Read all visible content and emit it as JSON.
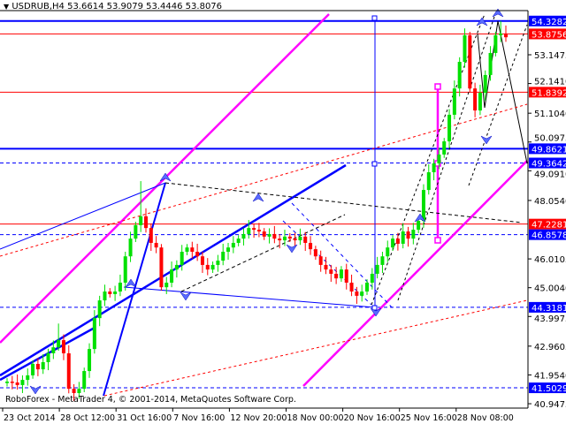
{
  "window": {
    "symbol_menu_icon": "triangle-down-icon",
    "title": "USDRUB,H4  53.6614 53.9079 53.4446 53.8076",
    "footer": "RoboForex - MetaTrader 4, © 2001-2014, MetaQuotes Software Corp."
  },
  "colors": {
    "bull": "#00e000",
    "bear": "#ff0000",
    "level_blue": "#0000ff",
    "level_red": "#ff0000",
    "pink": "#ff00ff",
    "axis": "#000000"
  },
  "chart_data": {
    "type": "candlestick",
    "symbol": "USDRUB",
    "timeframe": "H4",
    "ylim": [
      40.9475,
      54.33
    ],
    "y_ticks": [
      "53.1475",
      "52.1410",
      "51.1040",
      "50.0975",
      "49.0910",
      "48.0540",
      "46.0105",
      "45.0040",
      "43.9975",
      "42.9605",
      "41.9540",
      "40.9475"
    ],
    "x_ticks": [
      "23 Oct 2014",
      "28 Oct 12:00",
      "31 Oct 16:00",
      "7 Nov 16:00",
      "12 Nov 20:00",
      "18 Nov 00:00",
      "20 Nov 16:00",
      "25 Nov 16:00",
      "28 Nov 08:00"
    ],
    "closes": [
      41.72,
      41.69,
      41.6,
      41.78,
      41.94,
      42.34,
      42.15,
      42.4,
      42.71,
      42.92,
      43.17,
      42.71,
      41.47,
      41.32,
      41.47,
      42.09,
      42.86,
      43.94,
      44.56,
      44.87,
      44.78,
      44.87,
      45.18,
      46.1,
      46.72,
      47.19,
      47.5,
      47.09,
      46.57,
      46.41,
      45.02,
      45.18,
      45.64,
      45.8,
      46.26,
      46.41,
      46.26,
      46.1,
      45.8,
      45.64,
      45.8,
      45.95,
      46.26,
      46.41,
      46.57,
      46.72,
      46.88,
      47.09,
      47.03,
      46.97,
      46.79,
      46.88,
      46.72,
      46.66,
      46.79,
      46.72,
      46.66,
      46.79,
      46.57,
      46.35,
      46.1,
      45.8,
      45.64,
      45.49,
      45.33,
      45.64,
      45.18,
      44.87,
      44.72,
      44.87,
      45.18,
      45.49,
      45.8,
      46.1,
      46.41,
      46.72,
      46.54,
      46.97,
      46.72,
      47.03,
      47.34,
      48.42,
      49.04,
      49.35,
      49.66,
      50.12,
      51.05,
      51.97,
      52.9,
      53.83,
      51.97,
      51.2,
      51.82,
      52.44,
      53.21,
      53.83,
      53.89,
      53.76
    ],
    "spikes": [
      {
        "index": 10,
        "high": 43.75
      },
      {
        "index": 26,
        "high": 48.73
      },
      {
        "index": 96,
        "high": 54.33
      }
    ],
    "levels": [
      {
        "price": "54.3282",
        "color": "blue",
        "style": "solid"
      },
      {
        "price": "53.8756",
        "color": "red",
        "style": "solid"
      },
      {
        "price": "51.8392",
        "color": "red",
        "style": "solid"
      },
      {
        "price": "49.8621",
        "color": "blue",
        "style": "solid"
      },
      {
        "price": "49.3642",
        "color": "blue",
        "style": "dashed"
      },
      {
        "price": "47.2281",
        "color": "red",
        "style": "solid"
      },
      {
        "price": "46.8578",
        "color": "blue",
        "style": "dashed"
      },
      {
        "price": "44.3181",
        "color": "blue",
        "style": "dashed"
      },
      {
        "price": "41.5029",
        "color": "blue",
        "style": "dashed"
      }
    ],
    "grid": false
  }
}
